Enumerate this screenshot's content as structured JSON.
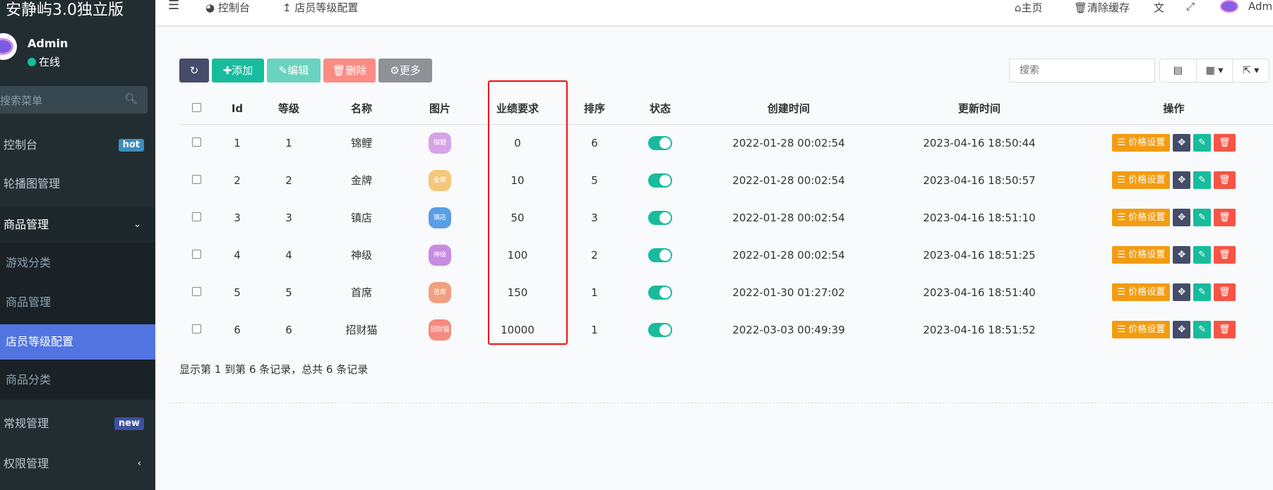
{
  "sidebar": {
    "brand": "安静屿3.0独立版",
    "user": "Admin",
    "status": "在线",
    "search_placeholder": "搜索菜单",
    "items": [
      {
        "label": "控制台",
        "badge": "hot",
        "badge_color": "#3c8dbc"
      },
      {
        "label": "轮播图管理"
      },
      {
        "label": "商品管理"
      },
      {
        "label": "常规管理",
        "badge": "new",
        "badge_color": "#3c52a0"
      },
      {
        "label": "权限管理"
      }
    ],
    "submenu": [
      {
        "label": "游戏分类"
      },
      {
        "label": "商品管理"
      },
      {
        "label": "店员等级配置"
      },
      {
        "label": "商品分类"
      }
    ]
  },
  "header": {
    "tabs": [
      {
        "label": "控制台"
      },
      {
        "label": "店员等级配置"
      }
    ],
    "home": "主页",
    "clear_cache": "清除缓存",
    "user": "Admin"
  },
  "toolbar": {
    "add": "添加",
    "edit": "编辑",
    "delete": "删除",
    "more": "更多",
    "search_placeholder": "搜索"
  },
  "table": {
    "columns": [
      "Id",
      "等级",
      "名称",
      "图片",
      "业绩要求",
      "排序",
      "状态",
      "创建时间",
      "更新时间",
      "操作"
    ],
    "op_label": "价格设置",
    "rows": [
      {
        "id": "1",
        "level": "1",
        "name": "锦鲤",
        "pic": "锦鲤",
        "pic_color": "#d7a3e6",
        "req": "0",
        "sort": "6",
        "status": true,
        "created": "2022-01-28 00:02:54",
        "updated": "2023-04-16 18:50:44"
      },
      {
        "id": "2",
        "level": "2",
        "name": "金牌",
        "pic": "金牌",
        "pic_color": "#f5c77a",
        "req": "10",
        "sort": "5",
        "status": true,
        "created": "2022-01-28 00:02:54",
        "updated": "2023-04-16 18:50:57"
      },
      {
        "id": "3",
        "level": "3",
        "name": "镇店",
        "pic": "镇店",
        "pic_color": "#5b9de6",
        "req": "50",
        "sort": "3",
        "status": true,
        "created": "2022-01-28 00:02:54",
        "updated": "2023-04-16 18:51:10"
      },
      {
        "id": "4",
        "level": "4",
        "name": "神级",
        "pic": "神级",
        "pic_color": "#c88be0",
        "req": "100",
        "sort": "2",
        "status": true,
        "created": "2022-01-28 00:02:54",
        "updated": "2023-04-16 18:51:25"
      },
      {
        "id": "5",
        "level": "5",
        "name": "首席",
        "pic": "首席",
        "pic_color": "#f0a080",
        "req": "150",
        "sort": "1",
        "status": true,
        "created": "2022-01-30 01:27:02",
        "updated": "2023-04-16 18:51:40"
      },
      {
        "id": "6",
        "level": "6",
        "name": "招财猫",
        "pic": "招财猫",
        "pic_color": "#f58a80",
        "req": "10000",
        "sort": "1",
        "status": true,
        "created": "2022-03-03 00:49:39",
        "updated": "2023-04-16 18:51:52"
      }
    ]
  },
  "footer": "显示第 1 到第 6 条记录，总共 6 条记录",
  "colors": {
    "primary": "#444c69",
    "success": "#18bc9c",
    "danger": "#f75444",
    "warning": "#f39c12",
    "active": "#5174e0",
    "highlight_box": "#f01010"
  }
}
